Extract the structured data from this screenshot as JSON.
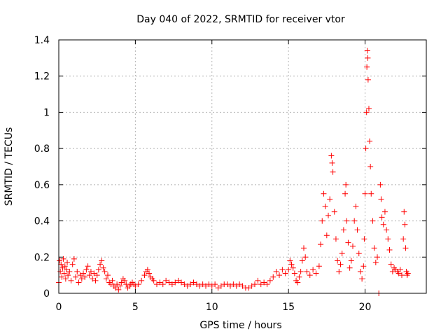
{
  "chart_data": {
    "type": "scatter",
    "title": "Day 040 of 2022, SRMTID for receiver vtor",
    "xlabel": "GPS time / hours",
    "ylabel": "SRMTID / TECUs",
    "xlim": [
      0,
      24
    ],
    "ylim": [
      0,
      1.4
    ],
    "grid": true,
    "marker": "+",
    "x_ticks": [
      0,
      5,
      10,
      15,
      20
    ],
    "x_tick_labels": [
      "0",
      "5",
      "10",
      "15",
      "20"
    ],
    "y_ticks": [
      0,
      0.2,
      0.4,
      0.6,
      0.8,
      1,
      1.2,
      1.4
    ],
    "y_tick_labels": [
      "0",
      "0.2",
      "0.4",
      "0.6",
      "0.8",
      "1",
      "1.2",
      "1.4"
    ],
    "series": [
      {
        "name": "vtor",
        "color": "#ff0000",
        "points": [
          [
            0.0,
            0.06
          ],
          [
            0.05,
            0.18
          ],
          [
            0.1,
            0.12
          ],
          [
            0.15,
            0.16
          ],
          [
            0.2,
            0.09
          ],
          [
            0.25,
            0.14
          ],
          [
            0.3,
            0.19
          ],
          [
            0.35,
            0.11
          ],
          [
            0.4,
            0.15
          ],
          [
            0.45,
            0.08
          ],
          [
            0.5,
            0.13
          ],
          [
            0.55,
            0.17
          ],
          [
            0.6,
            0.1
          ],
          [
            0.7,
            0.12
          ],
          [
            0.8,
            0.07
          ],
          [
            0.9,
            0.16
          ],
          [
            1.0,
            0.19
          ],
          [
            1.1,
            0.09
          ],
          [
            1.2,
            0.12
          ],
          [
            1.3,
            0.06
          ],
          [
            1.4,
            0.1
          ],
          [
            1.5,
            0.08
          ],
          [
            1.6,
            0.11
          ],
          [
            1.7,
            0.09
          ],
          [
            1.8,
            0.13
          ],
          [
            1.9,
            0.15
          ],
          [
            2.0,
            0.1
          ],
          [
            2.1,
            0.12
          ],
          [
            2.2,
            0.08
          ],
          [
            2.3,
            0.11
          ],
          [
            2.4,
            0.07
          ],
          [
            2.5,
            0.1
          ],
          [
            2.6,
            0.13
          ],
          [
            2.7,
            0.16
          ],
          [
            2.8,
            0.18
          ],
          [
            2.9,
            0.14
          ],
          [
            3.0,
            0.12
          ],
          [
            3.1,
            0.08
          ],
          [
            3.2,
            0.1
          ],
          [
            3.3,
            0.06
          ],
          [
            3.4,
            0.05
          ],
          [
            3.5,
            0.07
          ],
          [
            3.6,
            0.04
          ],
          [
            3.7,
            0.03
          ],
          [
            3.8,
            0.05
          ],
          [
            3.9,
            0.02
          ],
          [
            4.0,
            0.04
          ],
          [
            4.1,
            0.06
          ],
          [
            4.2,
            0.08
          ],
          [
            4.3,
            0.07
          ],
          [
            4.4,
            0.05
          ],
          [
            4.5,
            0.03
          ],
          [
            4.6,
            0.04
          ],
          [
            4.7,
            0.05
          ],
          [
            4.8,
            0.06
          ],
          [
            4.9,
            0.05
          ],
          [
            5.0,
            0.04
          ],
          [
            5.2,
            0.05
          ],
          [
            5.4,
            0.07
          ],
          [
            5.6,
            0.1
          ],
          [
            5.7,
            0.12
          ],
          [
            5.8,
            0.13
          ],
          [
            5.9,
            0.11
          ],
          [
            6.0,
            0.09
          ],
          [
            6.1,
            0.08
          ],
          [
            6.2,
            0.07
          ],
          [
            6.4,
            0.05
          ],
          [
            6.6,
            0.06
          ],
          [
            6.8,
            0.05
          ],
          [
            7.0,
            0.07
          ],
          [
            7.2,
            0.06
          ],
          [
            7.4,
            0.05
          ],
          [
            7.6,
            0.06
          ],
          [
            7.8,
            0.07
          ],
          [
            8.0,
            0.06
          ],
          [
            8.2,
            0.05
          ],
          [
            8.4,
            0.04
          ],
          [
            8.6,
            0.05
          ],
          [
            8.8,
            0.06
          ],
          [
            9.0,
            0.05
          ],
          [
            9.2,
            0.04
          ],
          [
            9.4,
            0.05
          ],
          [
            9.6,
            0.04
          ],
          [
            9.8,
            0.05
          ],
          [
            10.0,
            0.04
          ],
          [
            10.2,
            0.05
          ],
          [
            10.4,
            0.03
          ],
          [
            10.6,
            0.04
          ],
          [
            10.8,
            0.05
          ],
          [
            11.0,
            0.05
          ],
          [
            11.2,
            0.04
          ],
          [
            11.4,
            0.05
          ],
          [
            11.6,
            0.04
          ],
          [
            11.8,
            0.05
          ],
          [
            12.0,
            0.04
          ],
          [
            12.2,
            0.03
          ],
          [
            12.4,
            0.03
          ],
          [
            12.6,
            0.04
          ],
          [
            12.8,
            0.05
          ],
          [
            13.0,
            0.07
          ],
          [
            13.2,
            0.05
          ],
          [
            13.4,
            0.06
          ],
          [
            13.6,
            0.05
          ],
          [
            13.8,
            0.07
          ],
          [
            14.0,
            0.09
          ],
          [
            14.2,
            0.12
          ],
          [
            14.4,
            0.1
          ],
          [
            14.6,
            0.13
          ],
          [
            14.8,
            0.11
          ],
          [
            15.0,
            0.13
          ],
          [
            15.1,
            0.18
          ],
          [
            15.2,
            0.16
          ],
          [
            15.3,
            0.14
          ],
          [
            15.4,
            0.11
          ],
          [
            15.5,
            0.07
          ],
          [
            15.6,
            0.06
          ],
          [
            15.7,
            0.09
          ],
          [
            15.8,
            0.12
          ],
          [
            15.9,
            0.18
          ],
          [
            16.0,
            0.25
          ],
          [
            16.1,
            0.2
          ],
          [
            16.2,
            0.12
          ],
          [
            16.4,
            0.1
          ],
          [
            16.6,
            0.13
          ],
          [
            16.8,
            0.11
          ],
          [
            17.0,
            0.15
          ],
          [
            17.1,
            0.27
          ],
          [
            17.2,
            0.4
          ],
          [
            17.3,
            0.55
          ],
          [
            17.4,
            0.48
          ],
          [
            17.5,
            0.32
          ],
          [
            17.6,
            0.43
          ],
          [
            17.7,
            0.52
          ],
          [
            17.8,
            0.76
          ],
          [
            17.85,
            0.72
          ],
          [
            17.9,
            0.67
          ],
          [
            18.0,
            0.45
          ],
          [
            18.1,
            0.3
          ],
          [
            18.2,
            0.18
          ],
          [
            18.3,
            0.12
          ],
          [
            18.4,
            0.16
          ],
          [
            18.5,
            0.22
          ],
          [
            18.6,
            0.35
          ],
          [
            18.7,
            0.55
          ],
          [
            18.75,
            0.6
          ],
          [
            18.8,
            0.4
          ],
          [
            18.9,
            0.28
          ],
          [
            19.0,
            0.14
          ],
          [
            19.1,
            0.18
          ],
          [
            19.2,
            0.26
          ],
          [
            19.3,
            0.4
          ],
          [
            19.4,
            0.48
          ],
          [
            19.5,
            0.35
          ],
          [
            19.6,
            0.22
          ],
          [
            19.7,
            0.12
          ],
          [
            19.8,
            0.08
          ],
          [
            19.9,
            0.15
          ],
          [
            19.95,
            0.3
          ],
          [
            20.0,
            0.55
          ],
          [
            20.05,
            0.8
          ],
          [
            20.1,
            1.0
          ],
          [
            20.12,
            1.25
          ],
          [
            20.15,
            1.34
          ],
          [
            20.18,
            1.3
          ],
          [
            20.2,
            1.18
          ],
          [
            20.25,
            1.02
          ],
          [
            20.3,
            0.84
          ],
          [
            20.35,
            0.7
          ],
          [
            20.4,
            0.55
          ],
          [
            20.5,
            0.4
          ],
          [
            20.6,
            0.25
          ],
          [
            20.7,
            0.17
          ],
          [
            20.8,
            0.2
          ],
          [
            20.9,
            0.0
          ],
          [
            21.0,
            0.6
          ],
          [
            21.05,
            0.52
          ],
          [
            21.1,
            0.42
          ],
          [
            21.2,
            0.38
          ],
          [
            21.3,
            0.45
          ],
          [
            21.4,
            0.35
          ],
          [
            21.5,
            0.3
          ],
          [
            21.6,
            0.24
          ],
          [
            21.7,
            0.16
          ],
          [
            21.8,
            0.12
          ],
          [
            21.9,
            0.14
          ],
          [
            22.0,
            0.13
          ],
          [
            22.1,
            0.12
          ],
          [
            22.2,
            0.11
          ],
          [
            22.3,
            0.13
          ],
          [
            22.4,
            0.1
          ],
          [
            22.5,
            0.3
          ],
          [
            22.55,
            0.45
          ],
          [
            22.6,
            0.38
          ],
          [
            22.65,
            0.25
          ],
          [
            22.7,
            0.12
          ],
          [
            22.75,
            0.1
          ],
          [
            22.8,
            0.11
          ]
        ]
      }
    ]
  }
}
